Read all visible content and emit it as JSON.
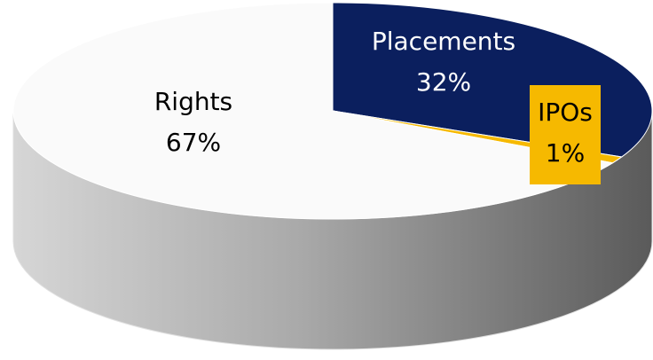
{
  "chart_data": {
    "type": "pie",
    "categories": [
      "Rights",
      "Placements",
      "IPOs"
    ],
    "values": [
      67,
      32,
      1
    ],
    "value_labels": [
      "67%",
      "32%",
      "1%"
    ],
    "colors": [
      "#fafafa",
      "#0b1f5e",
      "#f6b900"
    ],
    "label_colors": [
      "#000000",
      "#ffffff",
      "#000000"
    ]
  }
}
